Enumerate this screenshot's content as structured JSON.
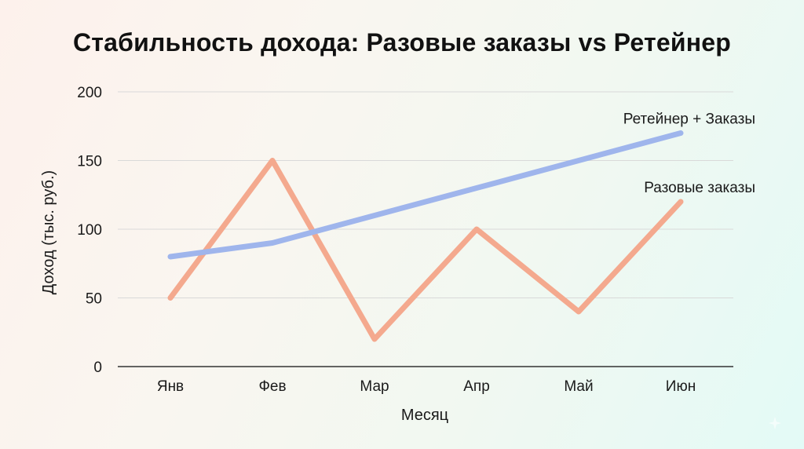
{
  "chart_data": {
    "type": "line",
    "title": "Стабильность дохода: Разовые заказы vs Ретейнер",
    "xlabel": "Месяц",
    "ylabel": "Доход (тыс. руб.)",
    "categories": [
      "Янв",
      "Фев",
      "Мар",
      "Апр",
      "Май",
      "Июн"
    ],
    "ylim": [
      0,
      200
    ],
    "yticks": [
      0,
      50,
      100,
      150,
      200
    ],
    "grid": true,
    "series": [
      {
        "name": "Разовые заказы",
        "values": [
          50,
          150,
          20,
          100,
          40,
          120
        ],
        "color": "#f4a98e"
      },
      {
        "name": "Ретейнер + Заказы",
        "values": [
          80,
          90,
          110,
          130,
          150,
          170
        ],
        "color": "#9fb5ec"
      }
    ]
  }
}
